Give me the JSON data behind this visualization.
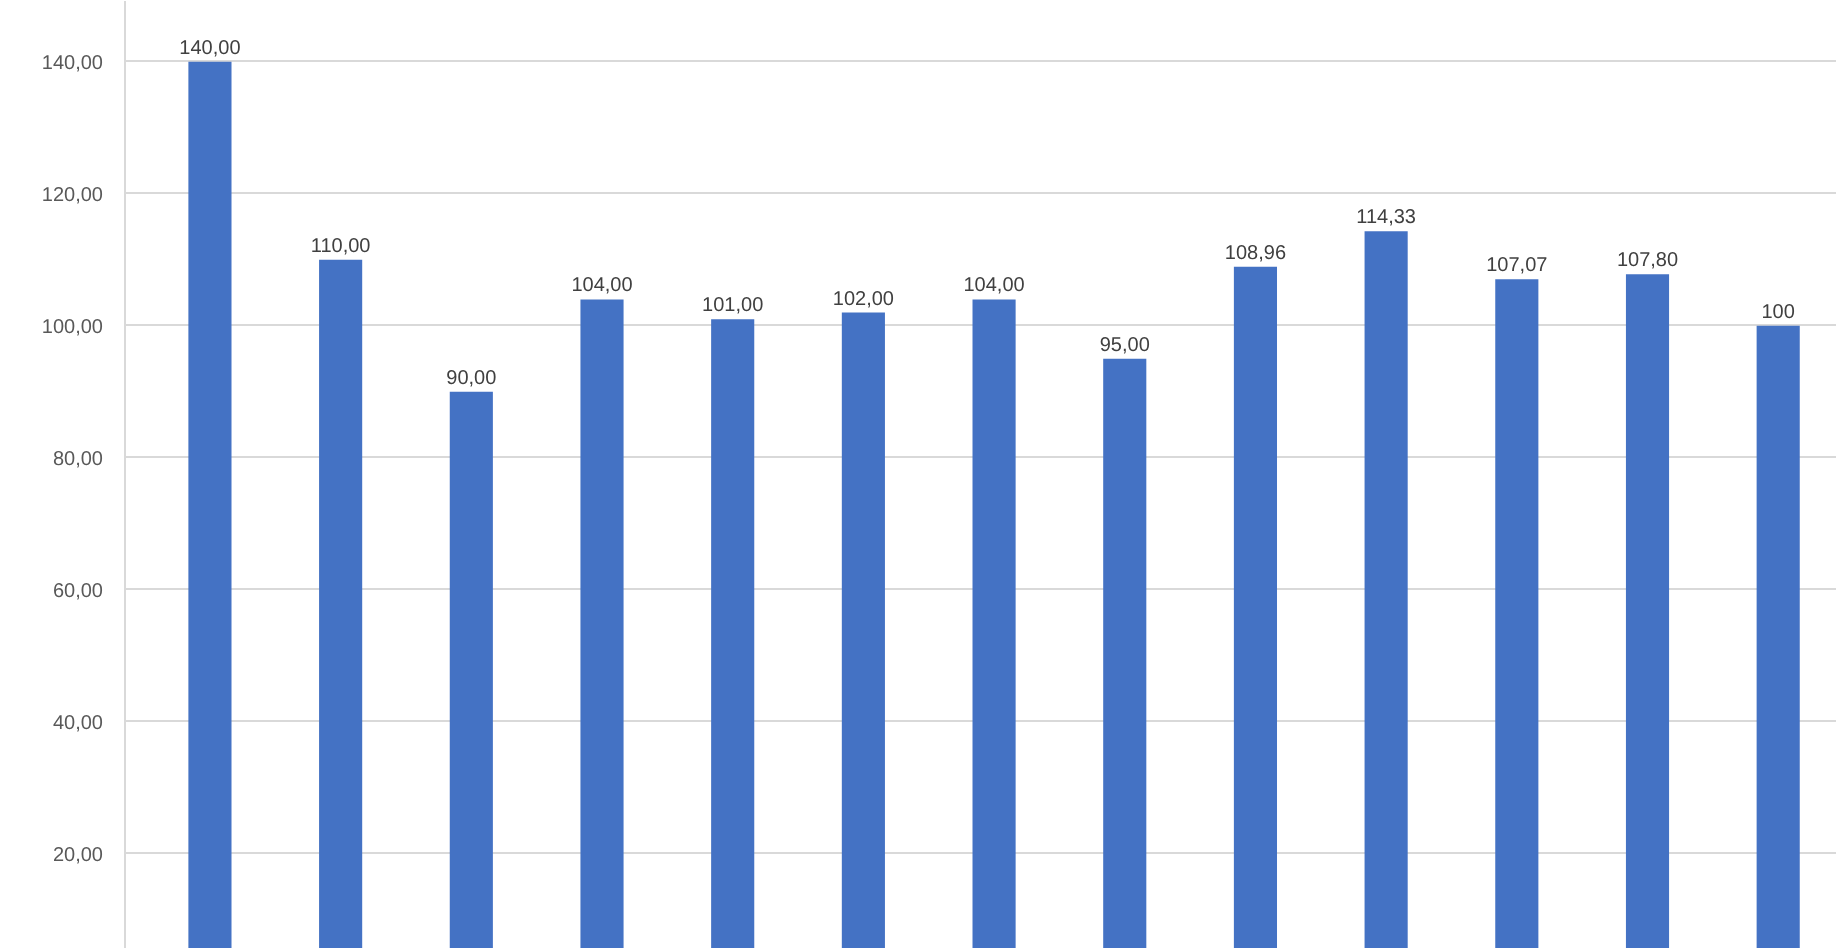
{
  "chart_data": {
    "type": "bar",
    "categories": [
      null,
      null,
      null,
      null,
      null,
      null,
      null,
      null,
      null,
      null,
      null,
      null,
      null
    ],
    "values": [
      140,
      110,
      90,
      104,
      101,
      102,
      104,
      95,
      108.96,
      114.33,
      107.07,
      107.8,
      100
    ],
    "value_labels": [
      "140,00",
      "110,00",
      "90,00",
      "104,00",
      "101,00",
      "102,00",
      "104,00",
      "95,00",
      "108,96",
      "114,33",
      "107,07",
      "107,80",
      "100"
    ],
    "color": "#4472c4",
    "ylim": [
      5.6,
      149.2
    ],
    "yticks": [
      {
        "value": 20,
        "label": "20,00"
      },
      {
        "value": 40,
        "label": "40,00"
      },
      {
        "value": 60,
        "label": "60,00"
      },
      {
        "value": 80,
        "label": "80,00"
      },
      {
        "value": 100,
        "label": "100,00"
      },
      {
        "value": 120,
        "label": "120,00"
      },
      {
        "value": 140,
        "label": "140,00"
      }
    ],
    "grid": "y",
    "tick_labels": "y"
  }
}
